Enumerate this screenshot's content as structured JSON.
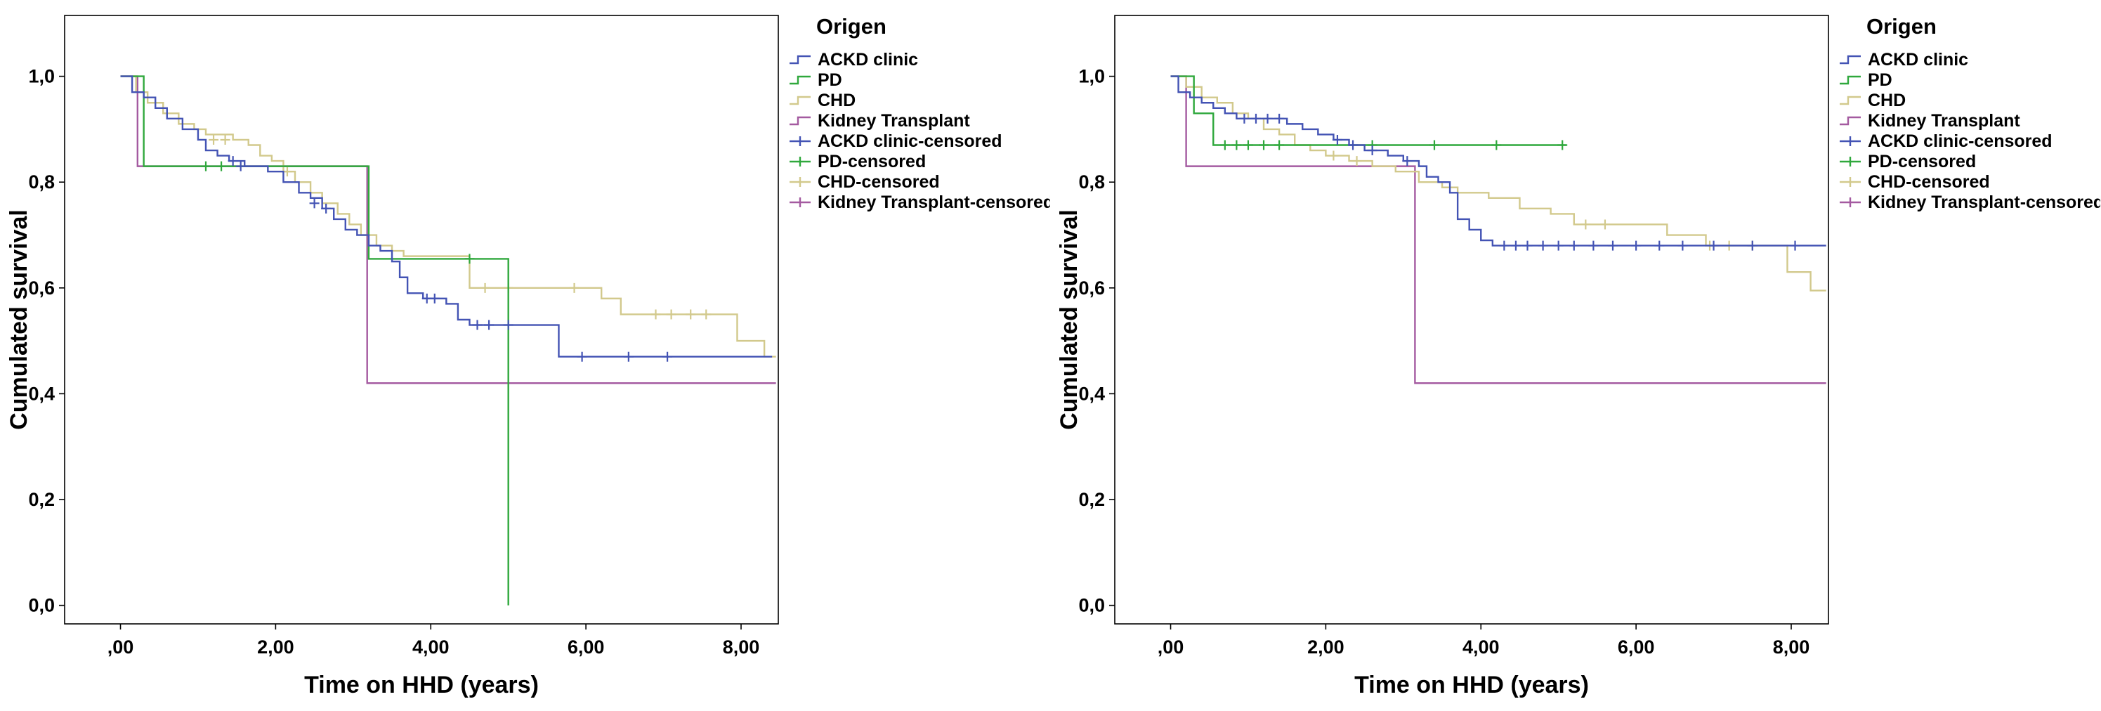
{
  "page": {
    "background": "#ffffff"
  },
  "palette": {
    "ackd_blue": "#4353b4",
    "pd_green": "#2fa83c",
    "chd_tan": "#d2c98c",
    "transplant_purple": "#a45aa0"
  },
  "chart_data": [
    {
      "type": "line",
      "subtype": "kaplan_meier_step",
      "title": "",
      "xlabel": "Time on HHD (years)",
      "ylabel": "Cumulated survival",
      "xlim": [
        -0.72,
        8.48
      ],
      "ylim": [
        -0.035,
        1.115
      ],
      "xticks": [
        0,
        2,
        4,
        6,
        8
      ],
      "xtick_labels": [
        ",00",
        "2,00",
        "4,00",
        "6,00",
        "8,00"
      ],
      "yticks": [
        0.0,
        0.2,
        0.4,
        0.6,
        0.8,
        1.0
      ],
      "ytick_labels": [
        "0,0",
        "0,2",
        "0,4",
        "0,6",
        "0,8",
        "1,0"
      ],
      "grid": false,
      "legend": {
        "title": "Origen",
        "position": "right",
        "entries": [
          {
            "label": "ACKD clinic",
            "color": "#4353b4",
            "type": "line"
          },
          {
            "label": "PD",
            "color": "#2fa83c",
            "type": "line"
          },
          {
            "label": "CHD",
            "color": "#d2c98c",
            "type": "line"
          },
          {
            "label": "Kidney Transplant",
            "color": "#a45aa0",
            "type": "line"
          },
          {
            "label": "ACKD clinic-censored",
            "color": "#4353b4",
            "type": "censored"
          },
          {
            "label": "PD-censored",
            "color": "#2fa83c",
            "type": "censored"
          },
          {
            "label": "CHD-censored",
            "color": "#d2c98c",
            "type": "censored"
          },
          {
            "label": "Kidney Transplant-censored",
            "color": "#a45aa0",
            "type": "censored"
          }
        ]
      },
      "series": [
        {
          "name": "Kidney Transplant",
          "color": "#a45aa0",
          "points": [
            [
              0,
              1.0
            ],
            [
              0.22,
              0.83
            ],
            [
              3.18,
              0.42
            ],
            [
              8.45,
              0.42
            ]
          ],
          "censored": []
        },
        {
          "name": "CHD",
          "color": "#d2c98c",
          "points": [
            [
              0,
              1.0
            ],
            [
              0.2,
              0.97
            ],
            [
              0.35,
              0.95
            ],
            [
              0.55,
              0.93
            ],
            [
              0.75,
              0.91
            ],
            [
              0.95,
              0.9
            ],
            [
              1.1,
              0.89
            ],
            [
              1.45,
              0.88
            ],
            [
              1.65,
              0.87
            ],
            [
              1.8,
              0.85
            ],
            [
              1.95,
              0.84
            ],
            [
              2.1,
              0.82
            ],
            [
              2.25,
              0.8
            ],
            [
              2.45,
              0.78
            ],
            [
              2.6,
              0.76
            ],
            [
              2.8,
              0.74
            ],
            [
              2.95,
              0.72
            ],
            [
              3.1,
              0.7
            ],
            [
              3.3,
              0.68
            ],
            [
              3.5,
              0.67
            ],
            [
              3.65,
              0.66
            ],
            [
              4.5,
              0.6
            ],
            [
              6.2,
              0.58
            ],
            [
              6.45,
              0.55
            ],
            [
              7.95,
              0.5
            ],
            [
              8.3,
              0.47
            ],
            [
              8.45,
              0.47
            ]
          ],
          "censored": [
            [
              1.2,
              0.88
            ],
            [
              1.35,
              0.88
            ],
            [
              2.15,
              0.82
            ],
            [
              4.7,
              0.6
            ],
            [
              5.0,
              0.6
            ],
            [
              5.85,
              0.6
            ],
            [
              6.9,
              0.55
            ],
            [
              7.1,
              0.55
            ],
            [
              7.35,
              0.55
            ],
            [
              7.55,
              0.55
            ]
          ]
        },
        {
          "name": "PD",
          "color": "#2fa83c",
          "points": [
            [
              0,
              1.0
            ],
            [
              0.3,
              0.83
            ],
            [
              3.2,
              0.655
            ],
            [
              5.0,
              0.0
            ]
          ],
          "censored": [
            [
              1.1,
              0.83
            ],
            [
              1.3,
              0.83
            ],
            [
              4.5,
              0.655
            ]
          ]
        },
        {
          "name": "ACKD clinic",
          "color": "#4353b4",
          "points": [
            [
              0,
              1.0
            ],
            [
              0.15,
              0.97
            ],
            [
              0.3,
              0.96
            ],
            [
              0.45,
              0.94
            ],
            [
              0.6,
              0.92
            ],
            [
              0.8,
              0.9
            ],
            [
              1.0,
              0.88
            ],
            [
              1.1,
              0.86
            ],
            [
              1.25,
              0.85
            ],
            [
              1.4,
              0.84
            ],
            [
              1.6,
              0.83
            ],
            [
              1.9,
              0.82
            ],
            [
              2.1,
              0.8
            ],
            [
              2.3,
              0.78
            ],
            [
              2.45,
              0.77
            ],
            [
              2.6,
              0.75
            ],
            [
              2.75,
              0.73
            ],
            [
              2.9,
              0.71
            ],
            [
              3.05,
              0.7
            ],
            [
              3.2,
              0.68
            ],
            [
              3.35,
              0.67
            ],
            [
              3.5,
              0.65
            ],
            [
              3.6,
              0.62
            ],
            [
              3.7,
              0.59
            ],
            [
              3.9,
              0.58
            ],
            [
              4.2,
              0.57
            ],
            [
              4.35,
              0.54
            ],
            [
              4.5,
              0.53
            ],
            [
              5.65,
              0.47
            ],
            [
              8.4,
              0.47
            ]
          ],
          "censored": [
            [
              1.45,
              0.84
            ],
            [
              1.55,
              0.83
            ],
            [
              2.5,
              0.76
            ],
            [
              2.65,
              0.75
            ],
            [
              3.95,
              0.58
            ],
            [
              4.05,
              0.58
            ],
            [
              4.6,
              0.53
            ],
            [
              4.75,
              0.53
            ],
            [
              5.0,
              0.53
            ],
            [
              5.95,
              0.47
            ],
            [
              6.55,
              0.47
            ],
            [
              7.05,
              0.47
            ]
          ]
        }
      ]
    },
    {
      "type": "line",
      "subtype": "kaplan_meier_step",
      "title": "",
      "xlabel": "Time on HHD (years)",
      "ylabel": "Cumulated survival",
      "xlim": [
        -0.72,
        8.48
      ],
      "ylim": [
        -0.035,
        1.115
      ],
      "xticks": [
        0,
        2,
        4,
        6,
        8
      ],
      "xtick_labels": [
        ",00",
        "2,00",
        "4,00",
        "6,00",
        "8,00"
      ],
      "yticks": [
        0.0,
        0.2,
        0.4,
        0.6,
        0.8,
        1.0
      ],
      "ytick_labels": [
        "0,0",
        "0,2",
        "0,4",
        "0,6",
        "0,8",
        "1,0"
      ],
      "grid": false,
      "legend": {
        "title": "Origen",
        "position": "right",
        "entries": [
          {
            "label": "ACKD clinic",
            "color": "#4353b4",
            "type": "line"
          },
          {
            "label": "PD",
            "color": "#2fa83c",
            "type": "line"
          },
          {
            "label": "CHD",
            "color": "#d2c98c",
            "type": "line"
          },
          {
            "label": "Kidney Transplant",
            "color": "#a45aa0",
            "type": "line"
          },
          {
            "label": "ACKD clinic-censored",
            "color": "#4353b4",
            "type": "censored"
          },
          {
            "label": "PD-censored",
            "color": "#2fa83c",
            "type": "censored"
          },
          {
            "label": "CHD-censored",
            "color": "#d2c98c",
            "type": "censored"
          },
          {
            "label": "Kidney Transplant-censored",
            "color": "#a45aa0",
            "type": "censored"
          }
        ]
      },
      "series": [
        {
          "name": "Kidney Transplant",
          "color": "#a45aa0",
          "points": [
            [
              0,
              1.0
            ],
            [
              0.2,
              0.83
            ],
            [
              3.15,
              0.42
            ],
            [
              8.45,
              0.42
            ]
          ],
          "censored": []
        },
        {
          "name": "CHD",
          "color": "#d2c98c",
          "points": [
            [
              0,
              1.0
            ],
            [
              0.2,
              0.98
            ],
            [
              0.4,
              0.96
            ],
            [
              0.6,
              0.95
            ],
            [
              0.8,
              0.93
            ],
            [
              1.0,
              0.92
            ],
            [
              1.2,
              0.9
            ],
            [
              1.4,
              0.89
            ],
            [
              1.6,
              0.87
            ],
            [
              1.8,
              0.86
            ],
            [
              2.0,
              0.85
            ],
            [
              2.3,
              0.84
            ],
            [
              2.6,
              0.83
            ],
            [
              2.9,
              0.82
            ],
            [
              3.2,
              0.8
            ],
            [
              3.5,
              0.79
            ],
            [
              3.7,
              0.78
            ],
            [
              4.1,
              0.77
            ],
            [
              4.5,
              0.75
            ],
            [
              4.9,
              0.74
            ],
            [
              5.2,
              0.72
            ],
            [
              6.4,
              0.7
            ],
            [
              6.9,
              0.68
            ],
            [
              7.95,
              0.63
            ],
            [
              8.25,
              0.595
            ],
            [
              8.45,
              0.595
            ]
          ],
          "censored": [
            [
              2.1,
              0.85
            ],
            [
              2.4,
              0.84
            ],
            [
              5.35,
              0.72
            ],
            [
              5.6,
              0.72
            ],
            [
              6.95,
              0.68
            ],
            [
              7.2,
              0.68
            ],
            [
              7.5,
              0.68
            ]
          ]
        },
        {
          "name": "PD",
          "color": "#2fa83c",
          "points": [
            [
              0,
              1.0
            ],
            [
              0.3,
              0.93
            ],
            [
              0.55,
              0.87
            ],
            [
              5.1,
              0.87
            ]
          ],
          "censored": [
            [
              0.7,
              0.87
            ],
            [
              0.85,
              0.87
            ],
            [
              1.0,
              0.87
            ],
            [
              1.2,
              0.87
            ],
            [
              1.4,
              0.87
            ],
            [
              2.6,
              0.87
            ],
            [
              3.4,
              0.87
            ],
            [
              4.2,
              0.87
            ],
            [
              5.05,
              0.87
            ]
          ]
        },
        {
          "name": "ACKD clinic",
          "color": "#4353b4",
          "points": [
            [
              0,
              1.0
            ],
            [
              0.1,
              0.97
            ],
            [
              0.25,
              0.96
            ],
            [
              0.4,
              0.95
            ],
            [
              0.55,
              0.94
            ],
            [
              0.7,
              0.93
            ],
            [
              0.85,
              0.92
            ],
            [
              1.5,
              0.91
            ],
            [
              1.7,
              0.9
            ],
            [
              1.9,
              0.89
            ],
            [
              2.1,
              0.88
            ],
            [
              2.3,
              0.87
            ],
            [
              2.5,
              0.86
            ],
            [
              2.8,
              0.85
            ],
            [
              3.0,
              0.84
            ],
            [
              3.2,
              0.83
            ],
            [
              3.3,
              0.81
            ],
            [
              3.45,
              0.8
            ],
            [
              3.6,
              0.78
            ],
            [
              3.7,
              0.73
            ],
            [
              3.85,
              0.71
            ],
            [
              4.0,
              0.69
            ],
            [
              4.15,
              0.68
            ],
            [
              8.45,
              0.68
            ]
          ],
          "censored": [
            [
              0.95,
              0.92
            ],
            [
              1.1,
              0.92
            ],
            [
              1.25,
              0.92
            ],
            [
              1.4,
              0.92
            ],
            [
              2.15,
              0.88
            ],
            [
              2.35,
              0.87
            ],
            [
              2.6,
              0.86
            ],
            [
              3.05,
              0.84
            ],
            [
              4.3,
              0.68
            ],
            [
              4.45,
              0.68
            ],
            [
              4.6,
              0.68
            ],
            [
              4.8,
              0.68
            ],
            [
              5.0,
              0.68
            ],
            [
              5.2,
              0.68
            ],
            [
              5.45,
              0.68
            ],
            [
              5.7,
              0.68
            ],
            [
              6.0,
              0.68
            ],
            [
              6.3,
              0.68
            ],
            [
              6.6,
              0.68
            ],
            [
              7.0,
              0.68
            ],
            [
              7.5,
              0.68
            ],
            [
              8.05,
              0.68
            ]
          ]
        }
      ]
    }
  ]
}
